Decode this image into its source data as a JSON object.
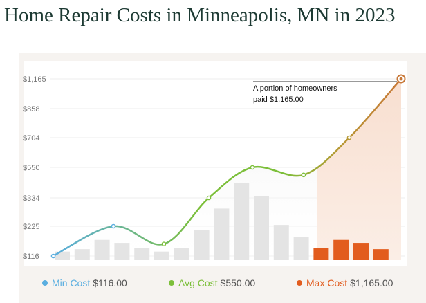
{
  "page": {
    "title": "Home Repair Costs in Minneapolis, MN in 2023"
  },
  "colors": {
    "min": "#5aaee0",
    "avg": "#7cbf3a",
    "max": "#e25c1e",
    "max_line": "#c87838",
    "bar": "#e4e4e4",
    "max_fill": "#f8dfd0"
  },
  "chart_data": {
    "type": "area",
    "y_ticks": [
      "$1,165",
      "$858",
      "$704",
      "$550",
      "$334",
      "$225",
      "$116"
    ],
    "annotation": {
      "line1": "A portion of homeowners",
      "line2": "paid $1,165.00"
    },
    "key_points": [
      {
        "label": "start",
        "value": 116
      },
      {
        "label": "peak1",
        "value": 225
      },
      {
        "label": "dip1",
        "value": 160
      },
      {
        "label": "rise",
        "value": 334
      },
      {
        "label": "avg",
        "value": 550
      },
      {
        "label": "dip2",
        "value": 497
      },
      {
        "label": "rise2",
        "value": 704
      },
      {
        "label": "max",
        "value": 1165
      }
    ],
    "bars": [
      {
        "value": 132,
        "highlight": false
      },
      {
        "value": 141,
        "highlight": false
      },
      {
        "value": 175,
        "highlight": false
      },
      {
        "value": 164,
        "highlight": false
      },
      {
        "value": 145,
        "highlight": false
      },
      {
        "value": 132,
        "highlight": false
      },
      {
        "value": 145,
        "highlight": false
      },
      {
        "value": 210,
        "highlight": false
      },
      {
        "value": 293,
        "highlight": false
      },
      {
        "value": 440,
        "highlight": false
      },
      {
        "value": 344,
        "highlight": false
      },
      {
        "value": 230,
        "highlight": false
      },
      {
        "value": 186,
        "highlight": false
      },
      {
        "value": 145,
        "highlight": true
      },
      {
        "value": 175,
        "highlight": true
      },
      {
        "value": 164,
        "highlight": true
      },
      {
        "value": 141,
        "highlight": true
      }
    ]
  },
  "legend": [
    {
      "key": "min",
      "name": "Min Cost",
      "value": "$116.00"
    },
    {
      "key": "avg",
      "name": "Avg Cost",
      "value": "$550.00"
    },
    {
      "key": "max",
      "name": "Max Cost",
      "value": "$1,165.00"
    }
  ]
}
